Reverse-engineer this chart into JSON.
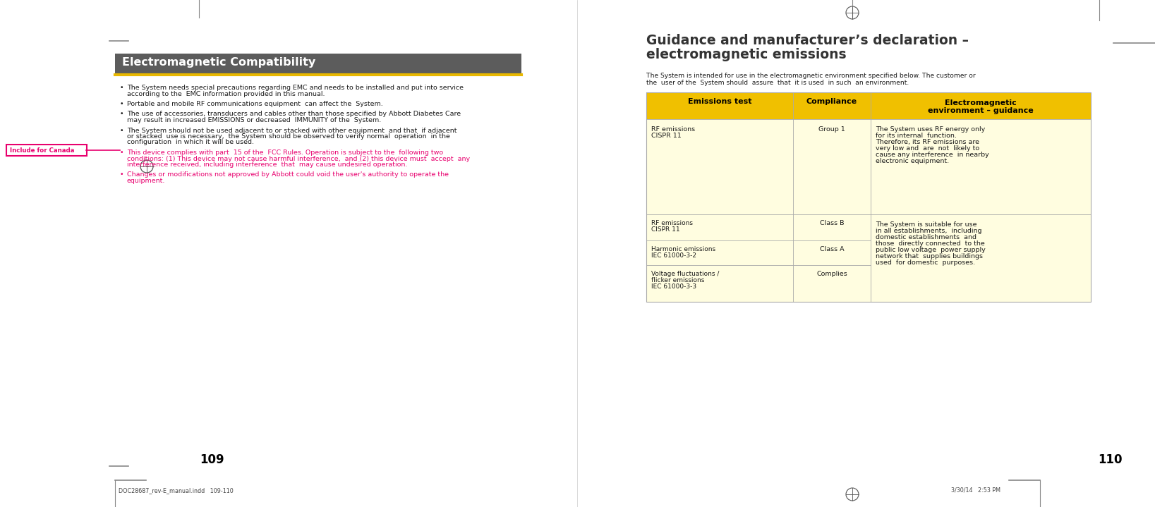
{
  "page_bg": "#ffffff",
  "left_page": {
    "title": "Electromagnetic Compatibility",
    "title_bg": "#5c5c5c",
    "title_color": "#ffffff",
    "title_underline_color": "#e8b800",
    "bullets_black": [
      "The System needs special precautions regarding EMC and needs to be installed and put into service\naccording to the  EMC information provided in this manual.",
      "Portable and mobile RF communications equipment  can affect the  System.",
      "The use of accessories, transducers and cables other than those specified by Abbott Diabetes Care\nmay result in increased EMISSIONS or decreased  IMMUNITY of the  System.",
      "The System should not be used adjacent to or stacked with other equipment  and that  if adjacent\nor stacked  use is necessary,  the System should be observed to verify normal  operation  in the\nconfiguration  in which it will be used."
    ],
    "bullets_pink": [
      "This device complies with part  15 of the  FCC Rules. Operation is subject to the  following two\nconditions: (1) This device may not cause harmful interference,  and (2) this device must  accept  any\ninterference received, including interference  that  may cause undesired operation.",
      "Changes or modifications not approved by Abbott could void the user's authority to operate the\nequipment."
    ],
    "include_canada_label": "Include for Canada",
    "page_num": "109",
    "footer_text": "DOC28687_rev-E_manual.indd   109-110"
  },
  "right_page": {
    "section_title_line1": "Guidance and manufacturer’s declaration –",
    "section_title_line2": "electromagnetic emissions",
    "intro_text": "The System is intended for use in the electromagnetic environment specified below. The customer or\nthe  user of the  System should  assure  that  it is used  in such  an environment.",
    "table": {
      "header_bg": "#f0c000",
      "header_color": "#000000",
      "row_bg": "#fffde0",
      "col_headers": [
        "Emissions test",
        "Compliance",
        "Electromagnetic\nenvironment – guidance"
      ],
      "row0_emission": "RF emissions\nCISPR 11",
      "row0_compliance": "Group 1",
      "row0_guidance": "The System uses RF energy only\nfor its internal  function.\nTherefore, its RF emissions are\nvery low and  are  not  likely to\ncause any interference  in nearby\nelectronic equipment.",
      "row1_emission": "RF emissions\nCISPR 11",
      "row1_compliance": "Class B",
      "row2_emission": "Harmonic emissions\nIEC 61000-3-2",
      "row2_compliance": "Class A",
      "row3_emission": "Voltage fluctuations /\nflicker emissions\nIEC 61000-3-3",
      "row3_compliance": "Complies",
      "row123_guidance": "The System is suitable for use\nin all establishments,  including\ndomestic establishments  and\nthose  directly connected  to the\npublic low voltage  power supply\nnetwork that  supplies buildings\nused  for domestic  purposes."
    },
    "page_num": "110",
    "footer_time": "3/30/14   2:53 PM"
  },
  "pink_color": "#e8006e",
  "dark_text": "#1a1a1a",
  "body_fs": 6.8,
  "title_fs": 11.5,
  "section_title_fs": 13.5,
  "header_fs": 8.0,
  "page_num_fs": 12,
  "footer_fs": 5.8
}
